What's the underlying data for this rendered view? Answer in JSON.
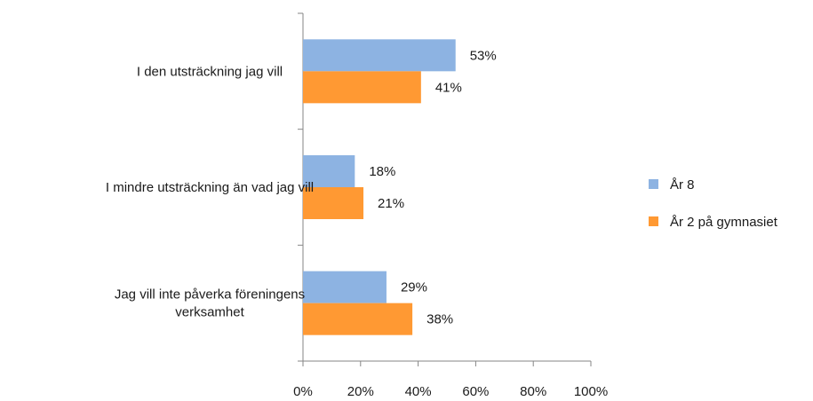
{
  "chart_data": {
    "type": "bar",
    "orientation": "horizontal",
    "categories": [
      [
        "I den utsträckning jag vill"
      ],
      [
        "I mindre utsträckning än vad jag vill"
      ],
      [
        "Jag vill inte påverka föreningens",
        "verksamhet"
      ]
    ],
    "series": [
      {
        "name": "År 8",
        "values": [
          53,
          18,
          29
        ],
        "color": "#8DB3E2"
      },
      {
        "name": "År 2 på gymnasiet",
        "values": [
          41,
          21,
          38
        ],
        "color": "#FF9933"
      }
    ],
    "value_suffix": "%",
    "xlim": [
      0,
      100
    ],
    "x_ticks": [
      0,
      20,
      40,
      60,
      80,
      100
    ],
    "x_tick_labels": [
      "0%",
      "20%",
      "40%",
      "60%",
      "80%",
      "100%"
    ],
    "title": "",
    "xlabel": "",
    "ylabel": "",
    "grid": false,
    "legend_position": "right"
  }
}
